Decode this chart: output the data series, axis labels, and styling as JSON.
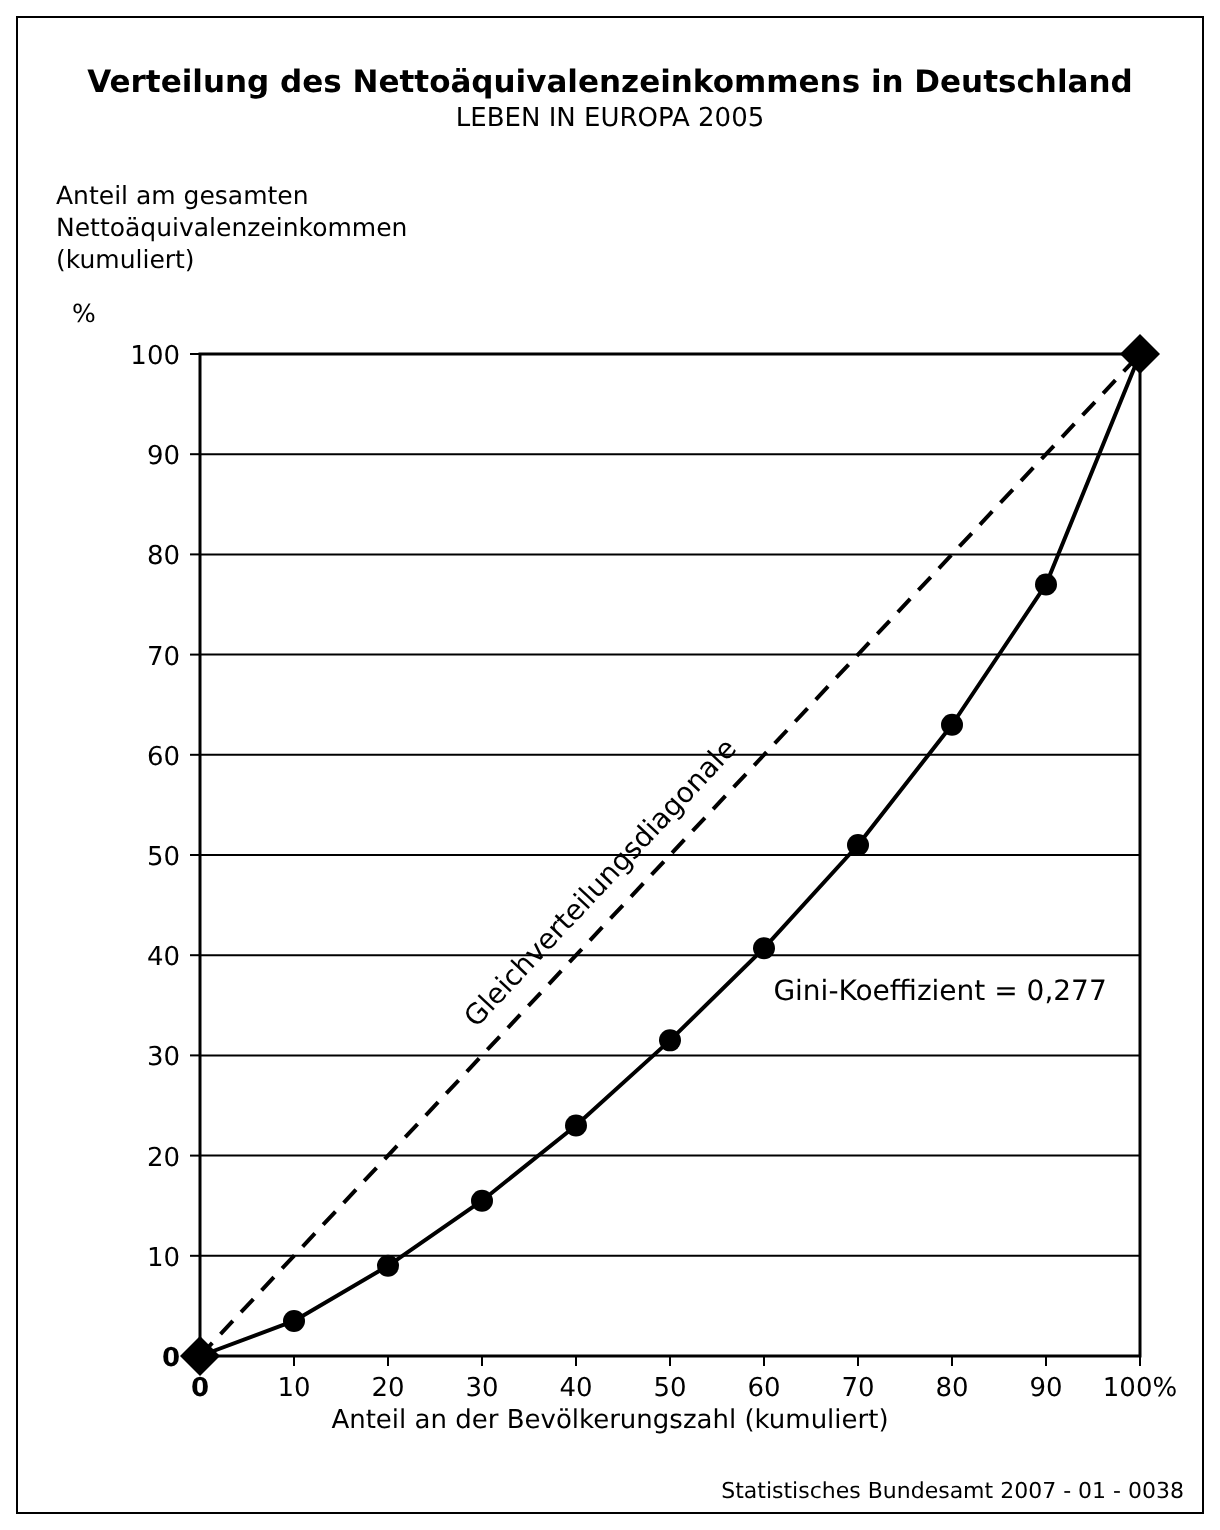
{
  "chart_data": {
    "type": "line",
    "title": "Verteilung des Nettoäquivalenzeinkommens in Deutschland",
    "subtitle": "LEBEN IN EUROPA 2005",
    "ylabel": "Anteil am gesamten\nNettoäquivalenzeinkommen\n(kumuliert)\n%",
    "xlabel": "Anteil an der Bevölkerungszahl (kumuliert)",
    "annotations": [
      "Gini-Koeffizient = 0,277",
      "Statistisches Bundesamt 2007 - 01 - 0038"
    ],
    "series": [
      {
        "name": "Gleichverteilungsdiagonale",
        "color": "#000000",
        "x": [
          0,
          100
        ],
        "values": [
          0,
          100
        ],
        "line_style": "dashed",
        "marker": "diamond"
      },
      {
        "color": "#000000",
        "x": [
          0,
          10,
          20,
          30,
          40,
          50,
          60,
          70,
          80,
          90,
          100
        ],
        "values": [
          0,
          3.5,
          9,
          15.5,
          23,
          31.5,
          40.7,
          51,
          63,
          77,
          100
        ],
        "line_style": "solid",
        "marker": "circle"
      }
    ],
    "xlim": [
      0,
      100
    ],
    "ylim": [
      0,
      100
    ],
    "xticks": [
      0,
      10,
      20,
      30,
      40,
      50,
      60,
      70,
      80,
      90,
      {
        "value": 100,
        "label": "100%"
      }
    ],
    "yticks": [
      0,
      10,
      20,
      30,
      40,
      50,
      60,
      70,
      80,
      90,
      100
    ],
    "grid": "y"
  }
}
